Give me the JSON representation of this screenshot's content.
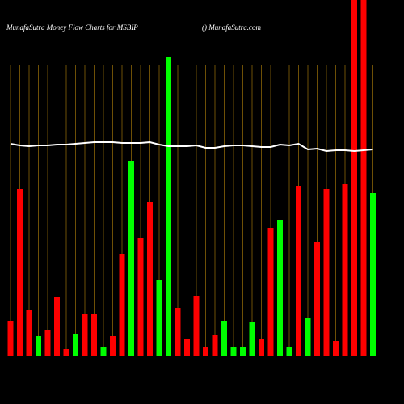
{
  "chart_data": {
    "type": "bar",
    "title": "MunafaSutra  Money Flow  Charts for MSBIP",
    "subtitle": "() MunafaSutra.com",
    "background": "#000000",
    "grid_color": "#b8860b",
    "values": [
      43,
      206,
      56,
      24,
      31,
      72,
      8,
      27,
      51,
      51,
      11,
      24,
      126,
      241,
      146,
      190,
      93,
      369,
      59,
      21,
      74,
      10,
      26,
      43,
      10,
      10,
      42,
      20,
      158,
      168,
      11,
      210,
      47,
      141,
      206,
      18,
      212,
      470,
      470,
      201
    ],
    "bar_colors": [
      "#ff0000",
      "#ff0000",
      "#ff0000",
      "#00ff00",
      "#ff0000",
      "#ff0000",
      "#ff0000",
      "#00ff00",
      "#ff0000",
      "#ff0000",
      "#00ff00",
      "#ff0000",
      "#ff0000",
      "#00ff00",
      "#ff0000",
      "#ff0000",
      "#00ff00",
      "#00ff00",
      "#ff0000",
      "#ff0000",
      "#ff0000",
      "#ff0000",
      "#ff0000",
      "#00ff00",
      "#00ff00",
      "#00ff00",
      "#00ff00",
      "#ff0000",
      "#ff0000",
      "#00ff00",
      "#00ff00",
      "#ff0000",
      "#00ff00",
      "#ff0000",
      "#ff0000",
      "#ff0000",
      "#ff0000",
      "#ff0000",
      "#ff0000",
      "#00ff00"
    ],
    "line": {
      "color": "#ffffff",
      "values": [
        262,
        260,
        259,
        260,
        260,
        261,
        261,
        262,
        263,
        264,
        264,
        264,
        263,
        263,
        263,
        264,
        261,
        259,
        259,
        259,
        260,
        257,
        257,
        259,
        260,
        260,
        259,
        258,
        258,
        261,
        260,
        262,
        255,
        256,
        253,
        254,
        254,
        253,
        254,
        255
      ]
    }
  }
}
